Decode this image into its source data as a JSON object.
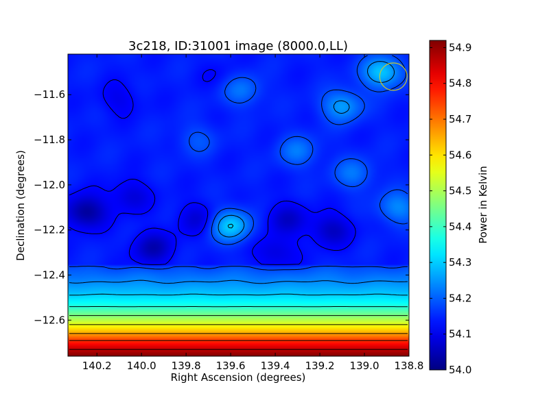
{
  "chart_data": {
    "type": "heatmap",
    "title": "3c218, ID:31001 image (8000.0,LL)",
    "xlabel": "Right Ascension (degrees)",
    "ylabel": "Declination (degrees)",
    "xlim": [
      140.33,
      138.8
    ],
    "ylim": [
      -12.76,
      -11.42
    ],
    "x_ticks": [
      {
        "value": 140.2,
        "label": "140.2"
      },
      {
        "value": 140.0,
        "label": "140.0"
      },
      {
        "value": 139.8,
        "label": "139.8"
      },
      {
        "value": 139.6,
        "label": "139.6"
      },
      {
        "value": 139.4,
        "label": "139.4"
      },
      {
        "value": 139.2,
        "label": "139.2"
      },
      {
        "value": 139.0,
        "label": "139.0"
      },
      {
        "value": 138.8,
        "label": "138.8"
      }
    ],
    "y_ticks": [
      {
        "value": -11.6,
        "label": "−11.6"
      },
      {
        "value": -11.8,
        "label": "−11.8"
      },
      {
        "value": -12.0,
        "label": "−12.0"
      },
      {
        "value": -12.2,
        "label": "−12.2"
      },
      {
        "value": -12.4,
        "label": "−12.4"
      },
      {
        "value": -12.6,
        "label": "−12.6"
      }
    ],
    "colorbar": {
      "label": "Power in Kelvin",
      "min": 54.0,
      "max": 54.92,
      "colormap": "jet",
      "ticks": [
        {
          "value": 54.0,
          "label": "54.0"
        },
        {
          "value": 54.1,
          "label": "54.1"
        },
        {
          "value": 54.2,
          "label": "54.2"
        },
        {
          "value": 54.3,
          "label": "54.3"
        },
        {
          "value": 54.4,
          "label": "54.4"
        },
        {
          "value": 54.5,
          "label": "54.5"
        },
        {
          "value": 54.6,
          "label": "54.6"
        },
        {
          "value": 54.7,
          "label": "54.7"
        },
        {
          "value": 54.8,
          "label": "54.8"
        },
        {
          "value": 54.9,
          "label": "54.9"
        }
      ]
    },
    "background_level": 54.14,
    "bottom_gradient": [
      {
        "dec": -12.36,
        "value": 54.18
      },
      {
        "dec": -12.42,
        "value": 54.23
      },
      {
        "dec": -12.48,
        "value": 54.29
      },
      {
        "dec": -12.53,
        "value": 54.36
      },
      {
        "dec": -12.58,
        "value": 54.46
      },
      {
        "dec": -12.62,
        "value": 54.56
      },
      {
        "dec": -12.66,
        "value": 54.66
      },
      {
        "dec": -12.69,
        "value": 54.76
      },
      {
        "dec": -12.72,
        "value": 54.84
      },
      {
        "dec": -12.76,
        "value": 54.92
      }
    ],
    "features": [
      {
        "kind": "low",
        "ra": 140.25,
        "dec": -12.12,
        "value": 54.02
      },
      {
        "kind": "low",
        "ra": 140.05,
        "dec": -12.05,
        "value": 54.08
      },
      {
        "kind": "low",
        "ra": 139.95,
        "dec": -12.28,
        "value": 54.05
      },
      {
        "kind": "low",
        "ra": 139.75,
        "dec": -12.15,
        "value": 54.08
      },
      {
        "kind": "low",
        "ra": 139.35,
        "dec": -12.15,
        "value": 54.07
      },
      {
        "kind": "low",
        "ra": 139.15,
        "dec": -12.2,
        "value": 54.06
      },
      {
        "kind": "low",
        "ra": 139.4,
        "dec": -12.3,
        "value": 54.08
      },
      {
        "kind": "low",
        "ra": 140.1,
        "dec": -11.62,
        "value": 54.1
      },
      {
        "kind": "low",
        "ra": 139.65,
        "dec": -11.52,
        "value": 54.12
      },
      {
        "kind": "high",
        "ra": 139.6,
        "dec": -12.18,
        "value": 54.3
      },
      {
        "kind": "high",
        "ra": 139.55,
        "dec": -11.58,
        "value": 54.22
      },
      {
        "kind": "high",
        "ra": 139.1,
        "dec": -11.65,
        "value": 54.26
      },
      {
        "kind": "high",
        "ra": 138.92,
        "dec": -11.5,
        "value": 54.3
      },
      {
        "kind": "high",
        "ra": 139.3,
        "dec": -11.85,
        "value": 54.22
      },
      {
        "kind": "high",
        "ra": 139.05,
        "dec": -11.95,
        "value": 54.22
      },
      {
        "kind": "high",
        "ra": 138.85,
        "dec": -12.1,
        "value": 54.24
      },
      {
        "kind": "high",
        "ra": 139.75,
        "dec": -11.8,
        "value": 54.19
      }
    ],
    "contour_levels": [
      54.12,
      54.18,
      54.24,
      54.3,
      54.38,
      54.46,
      54.56,
      54.66,
      54.76,
      54.86
    ],
    "marker": {
      "shape": "circle",
      "ra": 138.87,
      "dec": -11.52,
      "color": "#c8c832"
    },
    "grid": false,
    "legend": "colorbar-right"
  }
}
